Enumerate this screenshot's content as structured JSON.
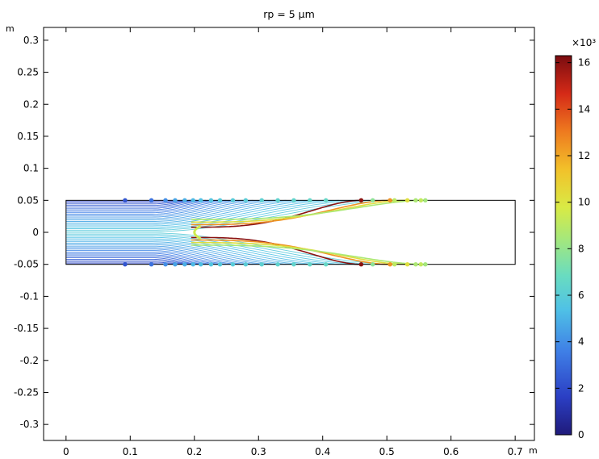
{
  "chart_data": {
    "type": "scatter",
    "title": "rp = 5 µm",
    "x_unit": "m",
    "y_unit": "m",
    "xlim": [
      -0.035,
      0.73
    ],
    "ylim": [
      -0.325,
      0.32
    ],
    "x_ticks": [
      0,
      0.1,
      0.2,
      0.3,
      0.4,
      0.5,
      0.6,
      0.7
    ],
    "x_tick_labels": [
      "0",
      "0.1",
      "0.2",
      "0.3",
      "0.4",
      "0.5",
      "0.6",
      "0.7"
    ],
    "y_ticks": [
      0.3,
      0.25,
      0.2,
      0.15,
      0.1,
      0.05,
      0,
      -0.05,
      -0.1,
      -0.15,
      -0.2,
      -0.25,
      -0.3
    ],
    "y_tick_labels": [
      "0.3",
      "0.25",
      "0.2",
      "0.15",
      "0.1",
      "0.05",
      "0",
      "-0.05",
      "-0.1",
      "-0.15",
      "-0.2",
      "-0.25",
      "-0.3"
    ],
    "grid": false,
    "geometry": {
      "channel_x": [
        0,
        0.7
      ],
      "channel_y": [
        -0.05,
        0.05
      ],
      "obstacle_tip_x": 0.195
    },
    "colorbar": {
      "exponent_label": "×10³",
      "min": 0,
      "max": 16.3,
      "ticks": [
        0,
        2,
        4,
        6,
        8,
        10,
        12,
        14,
        16
      ],
      "tick_labels": [
        "0",
        "2",
        "4",
        "6",
        "8",
        "10",
        "12",
        "14",
        "16"
      ],
      "colormap": "rainbow"
    },
    "particle_endpoints": [
      {
        "x": 0.092,
        "v": 2.3
      },
      {
        "x": 0.133,
        "v": 3.2
      },
      {
        "x": 0.155,
        "v": 4.0
      },
      {
        "x": 0.17,
        "v": 4.6
      },
      {
        "x": 0.185,
        "v": 4.9
      },
      {
        "x": 0.198,
        "v": 5.2
      },
      {
        "x": 0.21,
        "v": 5.4
      },
      {
        "x": 0.226,
        "v": 5.6
      },
      {
        "x": 0.24,
        "v": 5.8
      },
      {
        "x": 0.26,
        "v": 5.9
      },
      {
        "x": 0.28,
        "v": 6.0
      },
      {
        "x": 0.305,
        "v": 6.2
      },
      {
        "x": 0.33,
        "v": 6.3
      },
      {
        "x": 0.355,
        "v": 6.4
      },
      {
        "x": 0.38,
        "v": 6.5
      },
      {
        "x": 0.405,
        "v": 6.6
      },
      {
        "x": 0.46,
        "v": 16.0
      },
      {
        "x": 0.478,
        "v": 7.8
      },
      {
        "x": 0.505,
        "v": 12.5
      },
      {
        "x": 0.512,
        "v": 9.0
      },
      {
        "x": 0.532,
        "v": 10.2
      },
      {
        "x": 0.545,
        "v": 8.6
      },
      {
        "x": 0.553,
        "v": 9.2
      },
      {
        "x": 0.56,
        "v": 8.4
      }
    ]
  }
}
